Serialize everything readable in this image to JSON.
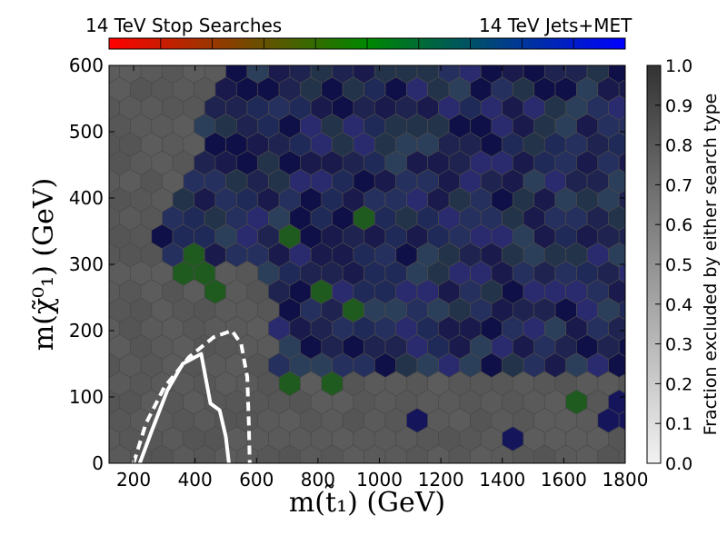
{
  "chart_data": {
    "type": "heatmap",
    "title": "",
    "xlabel": "m(t̃₁) (GeV)",
    "ylabel": "m(χ̃⁰₁) (GeV)",
    "xlim": [
      120,
      1800
    ],
    "ylim": [
      0,
      600
    ],
    "x_ticks": [
      "200",
      "400",
      "600",
      "800",
      "1000",
      "1200",
      "1400",
      "1600",
      "1800"
    ],
    "y_ticks": [
      "0",
      "100",
      "200",
      "300",
      "400",
      "500",
      "600"
    ],
    "grid": false,
    "top_colorbar": {
      "left_label": "14 TeV Stop Searches",
      "right_label": "14 TeV Jets+MET",
      "colors_from_left": [
        "#ff0000",
        "#0000ff"
      ],
      "colors_middle": "#008800"
    },
    "right_colorbar": {
      "label": "Fraction excluded by either search type",
      "ticks": [
        "0.0",
        "0.1",
        "0.2",
        "0.3",
        "0.4",
        "0.5",
        "0.6",
        "0.7",
        "0.8",
        "0.9",
        "1.0"
      ],
      "range": [
        0.0,
        1.0
      ]
    },
    "background_color": "#555555",
    "region": {
      "description": "excluded area, upper right",
      "boundary_left_edge": [
        [
          500,
          600
        ],
        [
          480,
          560
        ],
        [
          440,
          520
        ],
        [
          400,
          480
        ],
        [
          360,
          440
        ],
        [
          330,
          400
        ],
        [
          300,
          360
        ],
        [
          280,
          320
        ],
        [
          260,
          300
        ]
      ]
    },
    "contours": [
      {
        "style": "solid",
        "color": "#ffffff",
        "points": [
          [
            220,
            0
          ],
          [
            260,
            50
          ],
          [
            310,
            110
          ],
          [
            360,
            150
          ],
          [
            420,
            165
          ],
          [
            450,
            90
          ],
          [
            480,
            80
          ],
          [
            500,
            40
          ],
          [
            510,
            0
          ]
        ]
      },
      {
        "style": "dashed",
        "color": "#ffffff",
        "points": [
          [
            200,
            0
          ],
          [
            240,
            60
          ],
          [
            300,
            115
          ],
          [
            380,
            160
          ],
          [
            460,
            190
          ],
          [
            520,
            200
          ],
          [
            550,
            180
          ],
          [
            570,
            130
          ],
          [
            575,
            60
          ],
          [
            578,
            0
          ]
        ]
      }
    ],
    "highlight_cells": [
      {
        "x": 800,
        "y": 250,
        "type": "green"
      },
      {
        "x": 700,
        "y": 350,
        "type": "green"
      },
      {
        "x": 400,
        "y": 300,
        "type": "green"
      },
      {
        "x": 440,
        "y": 260,
        "type": "green"
      },
      {
        "x": 900,
        "y": 240,
        "type": "green"
      },
      {
        "x": 950,
        "y": 360,
        "type": "green"
      },
      {
        "x": 1650,
        "y": 90,
        "type": "green"
      },
      {
        "x": 850,
        "y": 130,
        "type": "green"
      },
      {
        "x": 700,
        "y": 110,
        "type": "green"
      },
      {
        "x": 1150,
        "y": 60,
        "type": "blue"
      },
      {
        "x": 1450,
        "y": 40,
        "type": "blue"
      },
      {
        "x": 1780,
        "y": 60,
        "type": "blue"
      },
      {
        "x": 1790,
        "y": 90,
        "type": "blue"
      }
    ]
  }
}
